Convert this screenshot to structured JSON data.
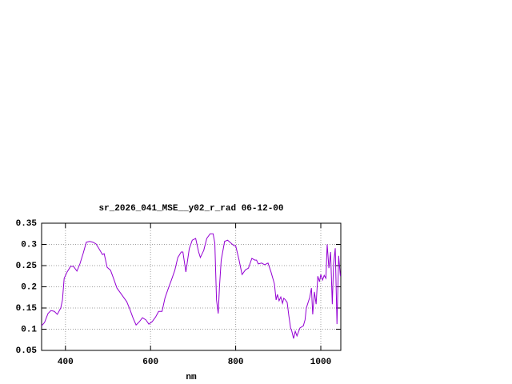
{
  "chart_data": {
    "type": "line",
    "title": "sr_2026_041_MSE__y02_r_rad 06-12-00",
    "x_label": "nm",
    "color": "#9400d3",
    "x": [
      344,
      351,
      359,
      366,
      374,
      381,
      389,
      393,
      397,
      404,
      412,
      419,
      427,
      434,
      442,
      449,
      457,
      465,
      472,
      480,
      487,
      491,
      498,
      506,
      513,
      521,
      529,
      536,
      544,
      551,
      559,
      566,
      574,
      581,
      589,
      596,
      604,
      612,
      619,
      627,
      634,
      642,
      649,
      657,
      664,
      672,
      676,
      683,
      691,
      698,
      706,
      713,
      717,
      725,
      732,
      740,
      747,
      751,
      755,
      759,
      762,
      766,
      774,
      781,
      789,
      796,
      800,
      808,
      815,
      823,
      830,
      838,
      845,
      849,
      853,
      861,
      868,
      876,
      883,
      891,
      895,
      898,
      902,
      906,
      910,
      913,
      917,
      921,
      925,
      929,
      932,
      936,
      940,
      944,
      951,
      959,
      963,
      966,
      974,
      978,
      981,
      985,
      989,
      993,
      997,
      1000,
      1004,
      1008,
      1012,
      1015,
      1019,
      1023,
      1027,
      1030,
      1034,
      1038,
      1042,
      1046
    ],
    "values": [
      0.108,
      0.116,
      0.137,
      0.144,
      0.142,
      0.135,
      0.15,
      0.169,
      0.22,
      0.235,
      0.248,
      0.248,
      0.237,
      0.254,
      0.28,
      0.305,
      0.307,
      0.305,
      0.301,
      0.288,
      0.276,
      0.278,
      0.246,
      0.239,
      0.22,
      0.197,
      0.186,
      0.176,
      0.165,
      0.148,
      0.126,
      0.11,
      0.118,
      0.127,
      0.122,
      0.112,
      0.118,
      0.129,
      0.142,
      0.142,
      0.174,
      0.197,
      0.216,
      0.239,
      0.269,
      0.282,
      0.282,
      0.235,
      0.29,
      0.31,
      0.314,
      0.282,
      0.269,
      0.286,
      0.314,
      0.325,
      0.325,
      0.303,
      0.169,
      0.137,
      0.201,
      0.263,
      0.307,
      0.31,
      0.303,
      0.297,
      0.297,
      0.263,
      0.229,
      0.24,
      0.244,
      0.267,
      0.263,
      0.263,
      0.254,
      0.256,
      0.252,
      0.256,
      0.235,
      0.207,
      0.169,
      0.182,
      0.167,
      0.176,
      0.161,
      0.173,
      0.169,
      0.163,
      0.131,
      0.103,
      0.095,
      0.078,
      0.095,
      0.084,
      0.103,
      0.108,
      0.122,
      0.15,
      0.175,
      0.197,
      0.135,
      0.188,
      0.159,
      0.225,
      0.212,
      0.229,
      0.216,
      0.227,
      0.22,
      0.3,
      0.244,
      0.282,
      0.159,
      0.254,
      0.291,
      0.112,
      0.273,
      0.225
    ],
    "xlim": [
      344,
      1047
    ],
    "ylim": [
      0.05,
      0.35
    ],
    "xticks": [
      400,
      600,
      800,
      1000
    ],
    "yticks": [
      0.05,
      0.1,
      0.15,
      0.2,
      0.25,
      0.3,
      0.35
    ],
    "grid": true
  }
}
